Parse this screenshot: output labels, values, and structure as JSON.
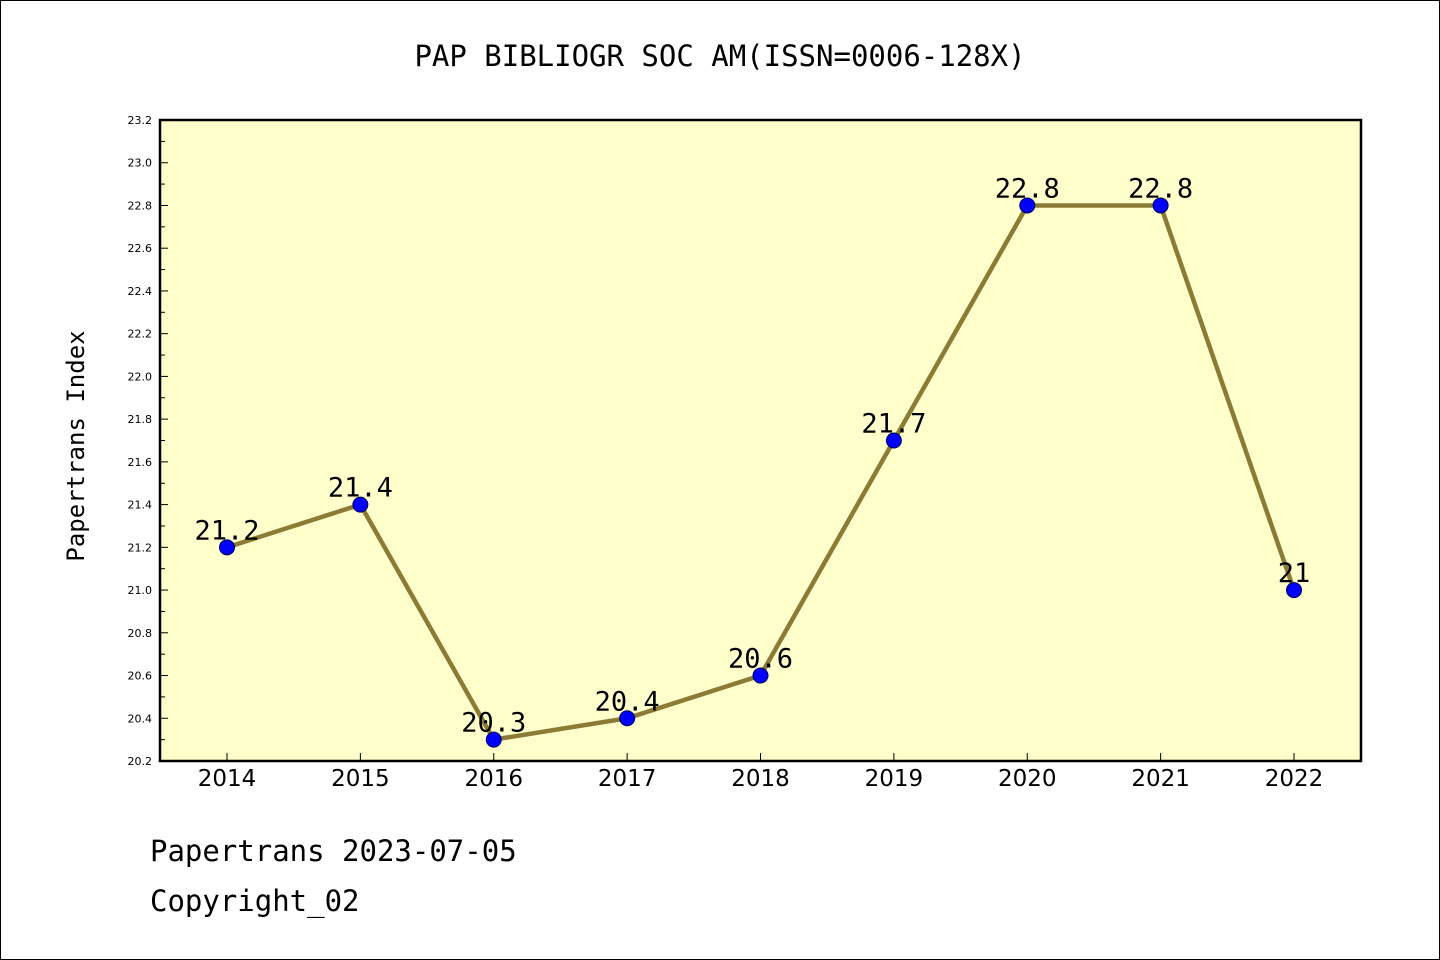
{
  "chart_data": {
    "type": "line",
    "title": "PAP BIBLIOGR SOC AM(ISSN=0006-128X)",
    "xlabel": "",
    "ylabel": "Papertrans Index",
    "categories": [
      "2014",
      "2015",
      "2016",
      "2017",
      "2018",
      "2019",
      "2020",
      "2021",
      "2022"
    ],
    "series": [
      {
        "values": [
          21.2,
          21.4,
          20.3,
          20.4,
          20.6,
          21.7,
          22.8,
          22.8,
          21.0
        ]
      }
    ],
    "data_labels": [
      "21.2",
      "21.4",
      "20.3",
      "20.4",
      "20.6",
      "21.7",
      "22.8",
      "22.8",
      "21"
    ],
    "ylim": [
      20.2,
      23.2
    ],
    "yticks": [
      "20.2",
      "20.4",
      "20.6",
      "20.8",
      "21.0",
      "21.2",
      "21.4",
      "21.6",
      "21.8",
      "22.0",
      "22.2",
      "22.4",
      "22.6",
      "22.8",
      "23.0",
      "23.2"
    ],
    "grid": false,
    "legend": "none",
    "colors": {
      "plot_background": "#ffffcc",
      "line": "#8b7b35",
      "marker": "#0000ff"
    }
  },
  "footer": {
    "date_line": "Papertrans 2023-07-05",
    "copyright": "Copyright_02"
  }
}
